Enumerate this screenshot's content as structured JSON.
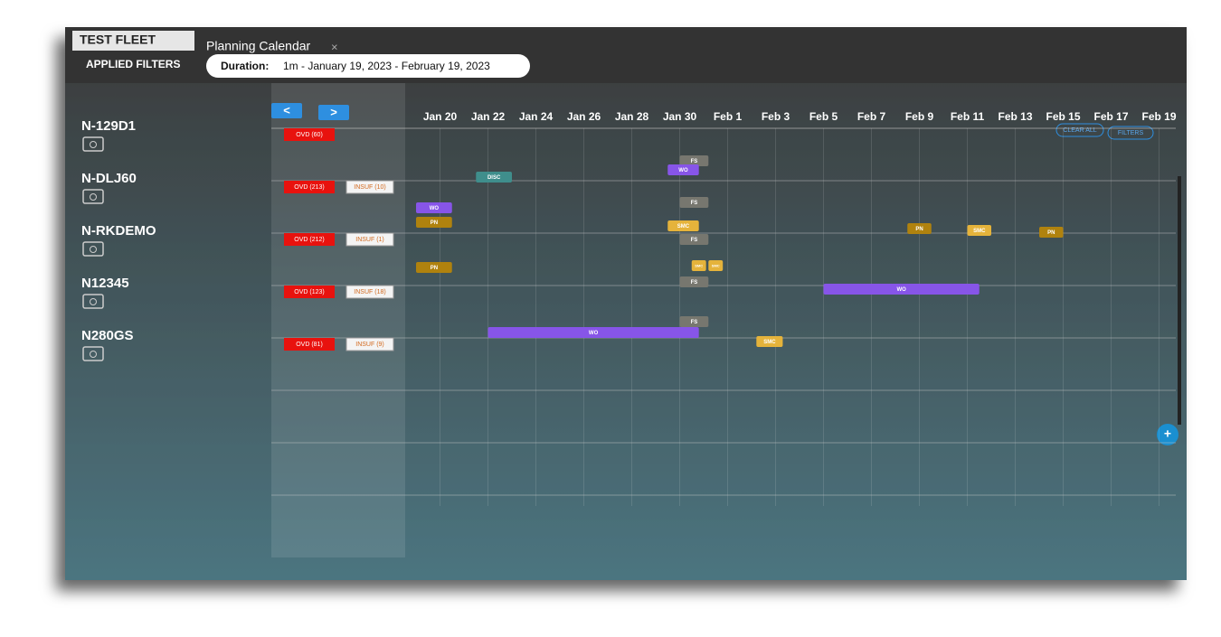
{
  "tabs": [
    "TEST FLEET",
    "Planning Calendar"
  ],
  "tab_close": "×",
  "filters": {
    "label": "APPLIED FILTERS",
    "duration_label": "Duration:",
    "duration_value": "1m - January 19, 2023 - February 19, 2023"
  },
  "nav": {
    "prev": "<",
    "next": ">"
  },
  "buttons": {
    "clear": "CLEAR ALL",
    "filters": "FILTERS",
    "add": "+"
  },
  "dates": [
    "Jan 20",
    "Jan 22",
    "Jan 24",
    "Jan 26",
    "Jan 28",
    "Jan 30",
    "Feb 1",
    "Feb 3",
    "Feb 5",
    "Feb 7",
    "Feb 9",
    "Feb 11",
    "Feb 13",
    "Feb 15",
    "Feb 17",
    "Feb 19"
  ],
  "aircraft": [
    {
      "name": "N-129D1",
      "badges": [
        "OVD (60)"
      ],
      "events": [
        {
          "label": "FS"
        },
        {
          "label": "DISC"
        },
        {
          "label": "WO"
        }
      ]
    },
    {
      "name": "N-DLJ60",
      "badges": [
        "OVD (213)",
        "INSUF (10)"
      ],
      "events": [
        {
          "label": "FS"
        },
        {
          "label": "WO"
        },
        {
          "label": "PN"
        },
        {
          "label": "SMC"
        },
        {
          "label": "PN"
        },
        {
          "label": "SMC"
        },
        {
          "label": "PN"
        }
      ]
    },
    {
      "name": "N-RKDEMO",
      "badges": [
        "OVD (212)",
        "INSUF (1)"
      ],
      "events": [
        {
          "label": "FS"
        },
        {
          "label": "PN"
        },
        {
          "label": "SMC"
        },
        {
          "label": "SMC"
        }
      ]
    },
    {
      "name": "N12345",
      "badges": [
        "OVD (123)",
        "INSUF (18)"
      ],
      "events": [
        {
          "label": "FS"
        },
        {
          "label": "WO"
        }
      ]
    },
    {
      "name": "N280GS",
      "badges": [
        "OVD (81)",
        "INSUF (9)"
      ],
      "events": [
        {
          "label": "FS"
        },
        {
          "label": "WO"
        },
        {
          "label": "SMC"
        }
      ]
    }
  ]
}
